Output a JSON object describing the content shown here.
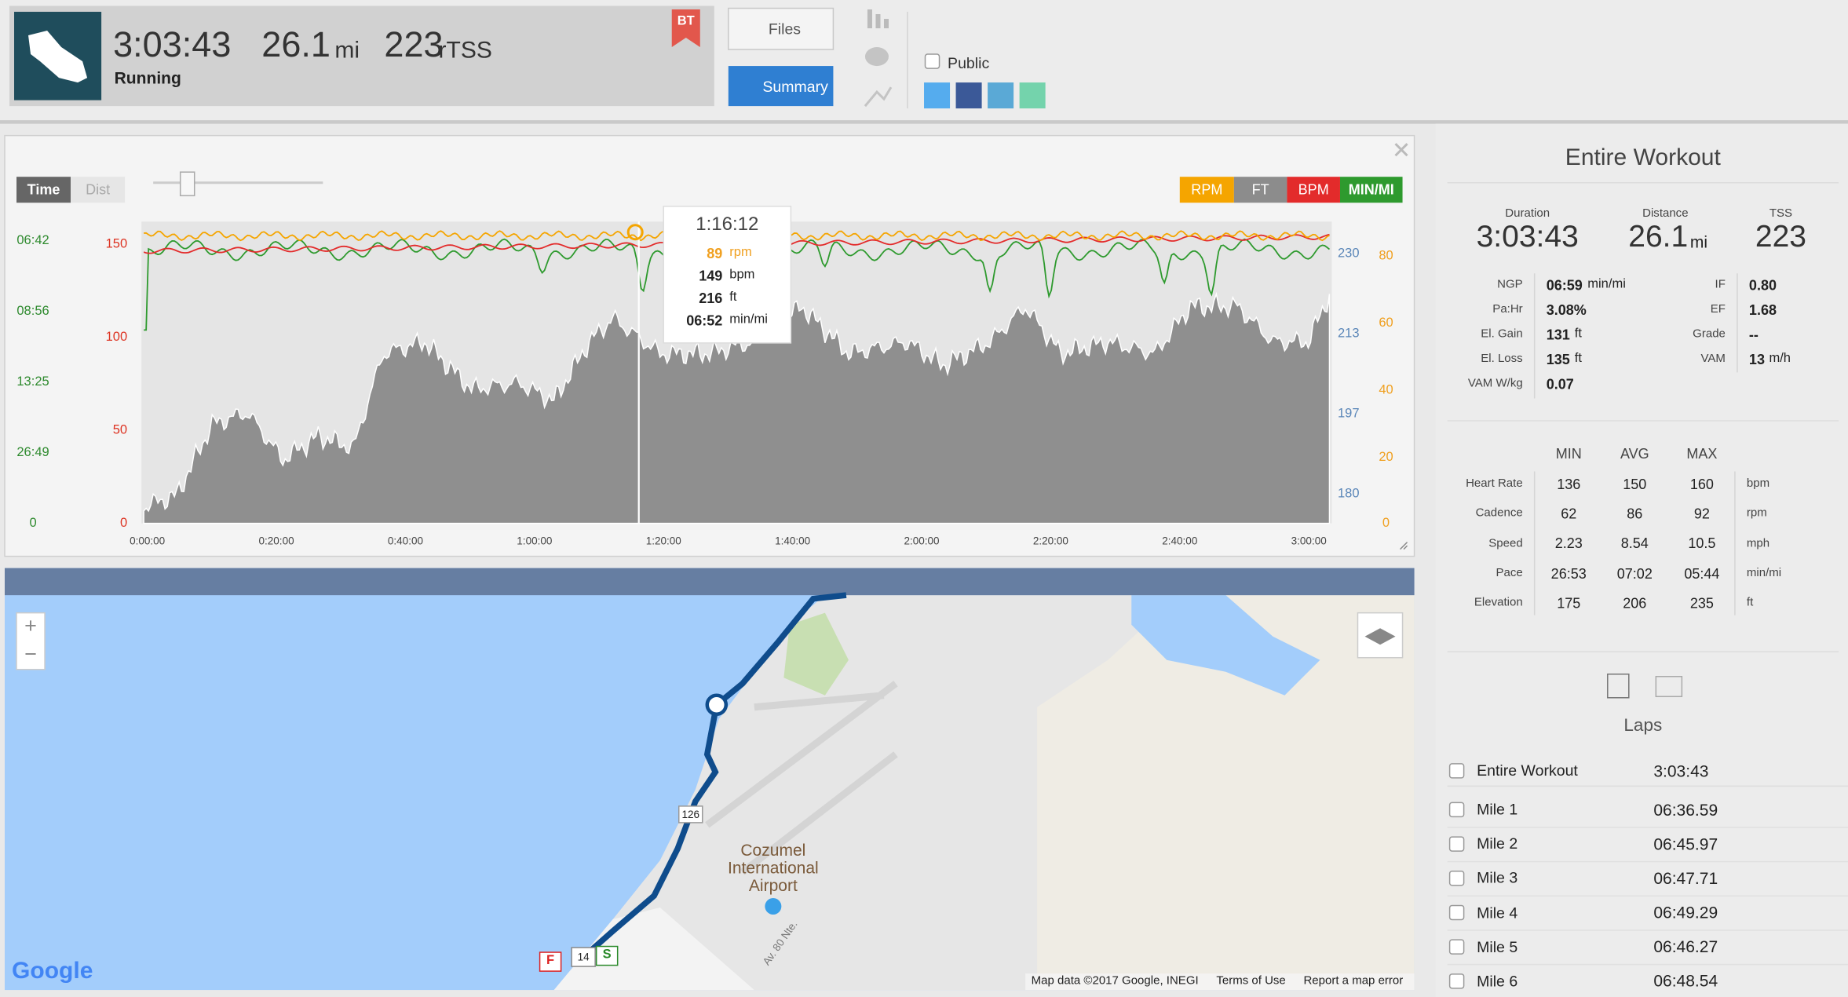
{
  "header": {
    "duration": "3:03:43",
    "distance": "26.1",
    "distance_unit": "mi",
    "tss": "223",
    "tss_unit": "rTSS",
    "sport": "Running",
    "badge": "BT",
    "files": "Files",
    "summary": "Summary",
    "public": "Public"
  },
  "chart": {
    "time_button": "Time",
    "dist_button": "Dist",
    "legend": [
      {
        "label": "RPM",
        "color": "#f5a500"
      },
      {
        "label": "FT",
        "color": "#8c8c8c"
      },
      {
        "label": "BPM",
        "color": "#e32b2b"
      },
      {
        "label": "MIN/MI",
        "color": "#2e9a2e"
      }
    ],
    "pace_ticks": [
      "06:42",
      "08:56",
      "13:25",
      "26:49",
      "0"
    ],
    "hr_ticks": [
      "150",
      "100",
      "50",
      "0"
    ],
    "elevation_ticks": [
      "230",
      "213",
      "197",
      "180"
    ],
    "cadence_ticks": [
      "80",
      "60",
      "40",
      "20",
      "0"
    ],
    "x_ticks": [
      "0:00:00",
      "0:20:00",
      "0:40:00",
      "1:00:00",
      "1:20:00",
      "1:40:00",
      "2:00:00",
      "2:20:00",
      "2:40:00",
      "3:00:00"
    ],
    "tooltip": {
      "time": "1:16:12",
      "rows": [
        {
          "value": "89",
          "unit": "rpm"
        },
        {
          "value": "149",
          "unit": "bpm"
        },
        {
          "value": "216",
          "unit": "ft"
        },
        {
          "value": "06:52",
          "unit": "min/mi"
        }
      ]
    }
  },
  "map": {
    "airport": "Cozumel International Airport",
    "road": "126",
    "road2": "14",
    "finish": "F",
    "start": "S",
    "street": "Av. 80 Nte.",
    "google": "Google",
    "attribution": "Map data ©2017 Google, INEGI",
    "terms": "Terms of Use",
    "report": "Report a map error",
    "zoom_in": "+",
    "zoom_out": "−"
  },
  "summary": {
    "title": "Entire Workout",
    "headline": [
      {
        "label": "Duration",
        "value": "3:03:43",
        "unit": ""
      },
      {
        "label": "Distance",
        "value": "26.1",
        "unit": "mi"
      },
      {
        "label": "TSS",
        "value": "223",
        "unit": ""
      }
    ],
    "metrics_left": [
      {
        "label": "NGP",
        "value": "06:59",
        "unit": "min/mi"
      },
      {
        "label": "Pa:Hr",
        "value": "3.08%",
        "unit": ""
      },
      {
        "label": "El. Gain",
        "value": "131",
        "unit": "ft"
      },
      {
        "label": "El. Loss",
        "value": "135",
        "unit": "ft"
      },
      {
        "label": "VAM W/kg",
        "value": "0.07",
        "unit": ""
      }
    ],
    "metrics_right": [
      {
        "label": "IF",
        "value": "0.80",
        "unit": ""
      },
      {
        "label": "EF",
        "value": "1.68",
        "unit": ""
      },
      {
        "label": "Grade",
        "value": "--",
        "unit": ""
      },
      {
        "label": "VAM",
        "value": "13",
        "unit": "m/h"
      }
    ],
    "table_header": [
      "MIN",
      "AVG",
      "MAX"
    ],
    "table_rows": [
      {
        "label": "Heart Rate",
        "min": "136",
        "avg": "150",
        "max": "160",
        "unit": "bpm"
      },
      {
        "label": "Cadence",
        "min": "62",
        "avg": "86",
        "max": "92",
        "unit": "rpm"
      },
      {
        "label": "Speed",
        "min": "2.23",
        "avg": "8.54",
        "max": "10.5",
        "unit": "mph"
      },
      {
        "label": "Pace",
        "min": "26:53",
        "avg": "07:02",
        "max": "05:44",
        "unit": "min/mi"
      },
      {
        "label": "Elevation",
        "min": "175",
        "avg": "206",
        "max": "235",
        "unit": "ft"
      }
    ]
  },
  "laps": {
    "title": "Laps",
    "rows": [
      {
        "name": "Entire Workout",
        "time": "3:03:43"
      },
      {
        "name": "Mile 1",
        "time": "06:36.59"
      },
      {
        "name": "Mile 2",
        "time": "06:45.97"
      },
      {
        "name": "Mile 3",
        "time": "06:47.71"
      },
      {
        "name": "Mile 4",
        "time": "06:49.29"
      },
      {
        "name": "Mile 5",
        "time": "06:46.27"
      },
      {
        "name": "Mile 6",
        "time": "06:48.54"
      }
    ]
  }
}
